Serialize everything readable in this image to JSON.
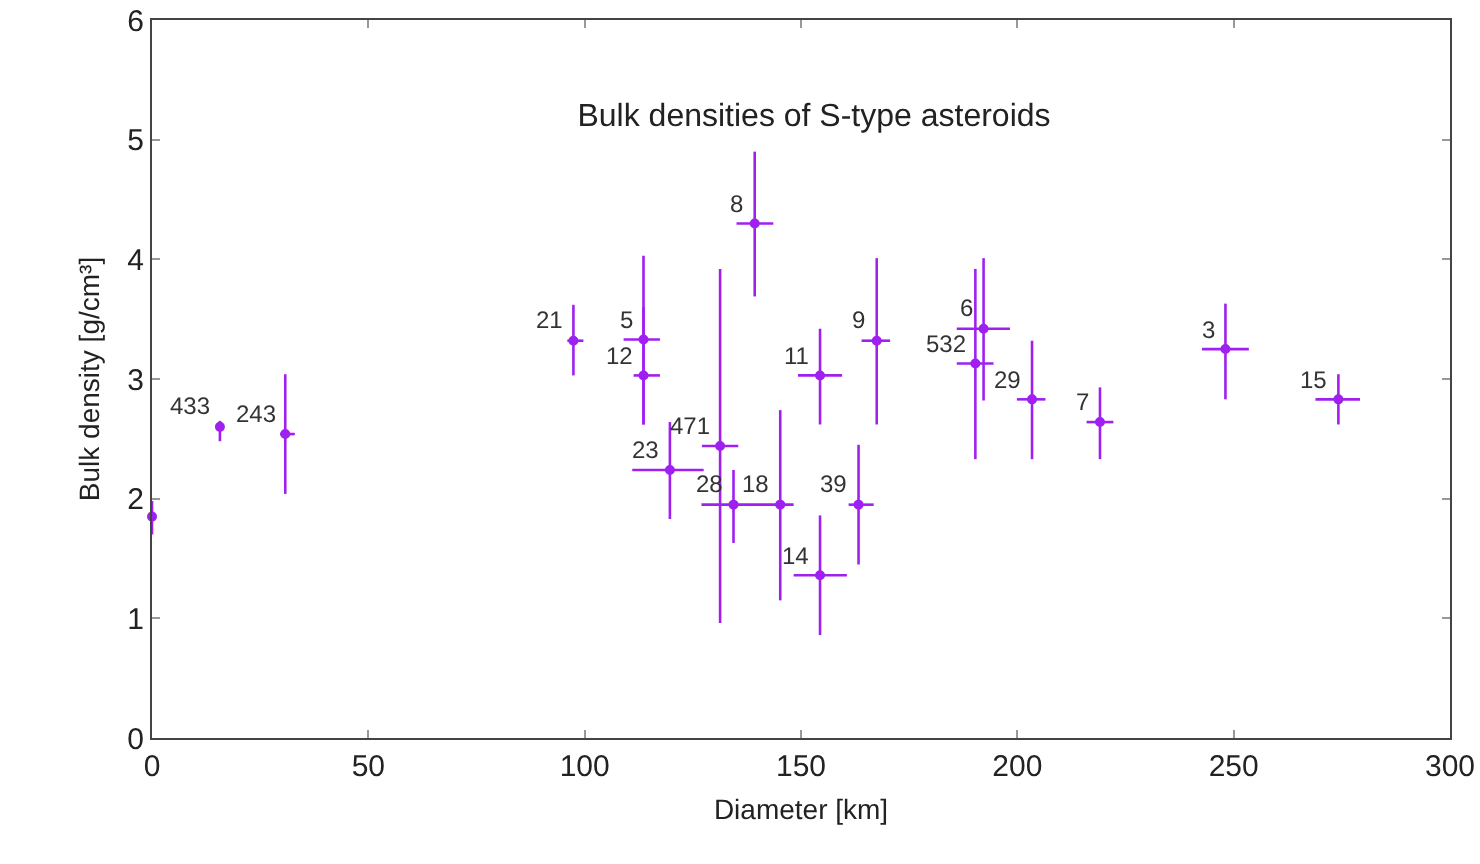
{
  "chart_data": {
    "type": "scatter",
    "title": "Bulk densities of S-type asteroids",
    "xlabel": "Diameter [km]",
    "ylabel": "Bulk density [g/cm³]",
    "x": [
      0,
      15.7,
      30.8,
      97.4,
      113.6,
      113.6,
      119.7,
      131.3,
      134.4,
      145.2,
      154.4,
      163.3,
      154.4,
      167.5,
      139.3,
      192.2,
      190.3,
      203.4,
      219.1,
      248.1,
      274.2
    ],
    "series": [
      {
        "color": "#a020f0",
        "values": [
          1.85,
          2.6,
          2.54,
          3.32,
          3.33,
          3.03,
          2.24,
          2.44,
          1.95,
          1.95,
          1.36,
          1.95,
          3.03,
          3.32,
          4.3,
          3.42,
          3.13,
          2.83,
          2.64,
          3.25,
          2.83
        ],
        "errors": [
          [
            1.7,
            1.98
          ],
          [
            2.48,
            2.65
          ],
          [
            2.04,
            3.04
          ],
          [
            3.03,
            3.62
          ],
          [
            2.62,
            4.03
          ],
          [
            2.62,
            3.6
          ],
          [
            1.83,
            2.64
          ],
          [
            0.96,
            3.92
          ],
          [
            1.63,
            2.24
          ],
          [
            1.15,
            2.74
          ],
          [
            0.86,
            1.86
          ],
          [
            1.45,
            2.45
          ],
          [
            2.62,
            3.42
          ],
          [
            2.62,
            4.01
          ],
          [
            3.69,
            4.9
          ],
          [
            2.82,
            4.01
          ],
          [
            2.33,
            3.92
          ],
          [
            2.33,
            3.32
          ],
          [
            2.33,
            2.93
          ],
          [
            2.83,
            3.63
          ],
          [
            2.62,
            3.04
          ]
        ],
        "xerrors": [
          null,
          null,
          [
            29.6,
            33
          ],
          [
            96,
            99.7
          ],
          [
            109,
            117.4
          ],
          [
            111.3,
            117.4
          ],
          [
            111,
            127.5
          ],
          [
            127.1,
            135.5
          ],
          [
            127,
            136.6
          ],
          [
            136.6,
            148.3
          ],
          [
            148.3,
            160.6
          ],
          [
            161,
            166.8
          ],
          [
            149.3,
            159.5
          ],
          [
            164,
            170.6
          ],
          [
            135.1,
            143.6
          ],
          [
            186,
            198.3
          ],
          [
            186,
            194.5
          ],
          [
            199.9,
            206.5
          ],
          [
            216,
            222.2
          ],
          [
            242.7,
            253.5
          ],
          [
            268.9,
            279.2
          ]
        ]
      }
    ],
    "annotations": [
      {
        "text": "433",
        "x": 15.7,
        "y": 2.6
      },
      {
        "text": "243",
        "x": 30.8,
        "y": 2.54
      },
      {
        "text": "21",
        "x": 97.4,
        "y": 3.32
      },
      {
        "text": "5",
        "x": 113.6,
        "y": 3.33
      },
      {
        "text": "12",
        "x": 113.6,
        "y": 3.03
      },
      {
        "text": "23",
        "x": 119.7,
        "y": 2.24
      },
      {
        "text": "471",
        "x": 131.3,
        "y": 2.44
      },
      {
        "text": "28",
        "x": 134.4,
        "y": 1.95
      },
      {
        "text": "18",
        "x": 145.2,
        "y": 1.95
      },
      {
        "text": "14",
        "x": 154.4,
        "y": 1.36
      },
      {
        "text": "39",
        "x": 163.3,
        "y": 1.95
      },
      {
        "text": "11",
        "x": 154.4,
        "y": 3.03
      },
      {
        "text": "9",
        "x": 167.5,
        "y": 3.32
      },
      {
        "text": "8",
        "x": 139.3,
        "y": 4.3
      },
      {
        "text": "6",
        "x": 192.2,
        "y": 3.42
      },
      {
        "text": "532",
        "x": 190.3,
        "y": 3.13
      },
      {
        "text": "29",
        "x": 203.4,
        "y": 2.83
      },
      {
        "text": "7",
        "x": 219.1,
        "y": 2.64
      },
      {
        "text": "3",
        "x": 248.1,
        "y": 3.25
      },
      {
        "text": "15",
        "x": 274.2,
        "y": 2.83
      }
    ],
    "xlim": [
      0,
      300
    ],
    "xticks": [
      0,
      50,
      100,
      150,
      200,
      250,
      300
    ],
    "ylim": [
      0,
      6
    ],
    "yticks": [
      0,
      1,
      2,
      3,
      4,
      5,
      6
    ],
    "grid": false,
    "marker": "circle"
  }
}
